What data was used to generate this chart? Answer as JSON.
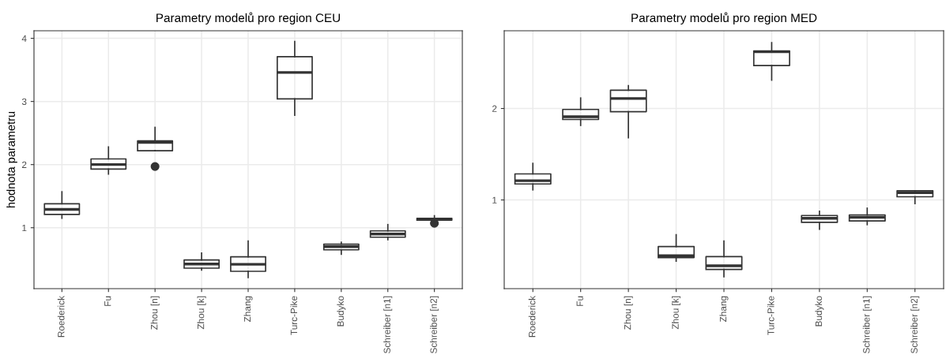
{
  "chart_data": [
    {
      "type": "box",
      "title": "Parametry modelů pro region CEU",
      "ylabel": "hodnota parametru",
      "categories": [
        "Roederick",
        "Fu",
        "Zhou [n]",
        "Zhou [k]",
        "Zhang",
        "Turc-Pike",
        "Budyko",
        "Schreiber [n1]",
        "Schreiber [n2]"
      ],
      "ylim": [
        0.035,
        4.12
      ],
      "yticks": [
        1,
        2,
        3,
        4
      ],
      "grid": true,
      "boxes": [
        {
          "low": 1.15,
          "q1": 1.21,
          "median": 1.29,
          "q3": 1.38,
          "high": 1.57
        },
        {
          "low": 1.85,
          "q1": 1.93,
          "median": 2.0,
          "q3": 2.09,
          "high": 2.28
        },
        {
          "low": 2.22,
          "q1": 2.22,
          "median": 2.35,
          "q3": 2.375,
          "high": 2.59,
          "outliers": [
            1.97
          ]
        },
        {
          "low": 0.33,
          "q1": 0.36,
          "median": 0.425,
          "q3": 0.49,
          "high": 0.6
        },
        {
          "low": 0.21,
          "q1": 0.31,
          "median": 0.42,
          "q3": 0.54,
          "high": 0.79
        },
        {
          "low": 2.78,
          "q1": 3.04,
          "median": 3.46,
          "q3": 3.71,
          "high": 3.95
        },
        {
          "low": 0.58,
          "q1": 0.65,
          "median": 0.7,
          "q3": 0.74,
          "high": 0.77
        },
        {
          "low": 0.81,
          "q1": 0.85,
          "median": 0.9,
          "q3": 0.95,
          "high": 1.05
        },
        {
          "low": 1.11,
          "q1": 1.12,
          "median": 1.14,
          "q3": 1.15,
          "high": 1.19,
          "outliers": [
            1.07
          ]
        }
      ]
    },
    {
      "type": "box",
      "title": "Parametry modelů pro region MED",
      "categories": [
        "Roederick",
        "Fu",
        "Zhou [n]",
        "Zhou [k]",
        "Zhang",
        "Turc-Pike",
        "Budyko",
        "Schreiber [n1]",
        "Schreiber [n2]"
      ],
      "ylim": [
        0.03,
        2.85
      ],
      "yticks": [
        1,
        2
      ],
      "grid": true,
      "boxes": [
        {
          "low": 1.11,
          "q1": 1.175,
          "median": 1.21,
          "q3": 1.285,
          "high": 1.4
        },
        {
          "low": 1.815,
          "q1": 1.88,
          "median": 1.91,
          "q3": 1.99,
          "high": 2.115
        },
        {
          "low": 1.68,
          "q1": 1.965,
          "median": 2.11,
          "q3": 2.2,
          "high": 2.25
        },
        {
          "low": 0.33,
          "q1": 0.37,
          "median": 0.39,
          "q3": 0.49,
          "high": 0.62
        },
        {
          "low": 0.16,
          "q1": 0.24,
          "median": 0.28,
          "q3": 0.38,
          "high": 0.55
        },
        {
          "low": 2.31,
          "q1": 2.47,
          "median": 2.62,
          "q3": 2.63,
          "high": 2.72
        },
        {
          "low": 0.68,
          "q1": 0.755,
          "median": 0.8,
          "q3": 0.83,
          "high": 0.876
        },
        {
          "low": 0.73,
          "q1": 0.77,
          "median": 0.81,
          "q3": 0.835,
          "high": 0.91
        },
        {
          "low": 0.96,
          "q1": 1.035,
          "median": 1.08,
          "q3": 1.1,
          "high": 1.1
        }
      ]
    }
  ]
}
